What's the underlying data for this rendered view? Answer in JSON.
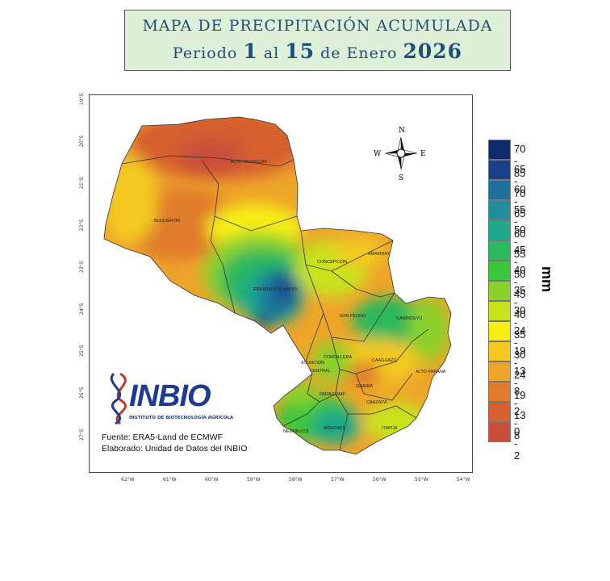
{
  "title": {
    "line1": "MAPA DE PRECIPITACIÓN ACUMULADA",
    "period_prefix": "Periodo",
    "period_start": "1",
    "period_mid": "al",
    "period_end": "15",
    "period_month": "de Enero",
    "period_year": "2026"
  },
  "legend": {
    "unit": "mm",
    "classes": [
      {
        "label": "70 - 85",
        "color": "#0d2a6e"
      },
      {
        "label": "65 - 70",
        "color": "#173f8a"
      },
      {
        "label": "60 - 65",
        "color": "#1f6e9c"
      },
      {
        "label": "55 - 60",
        "color": "#1f8f9b"
      },
      {
        "label": "50 - 55",
        "color": "#1fa88a"
      },
      {
        "label": "45 - 50",
        "color": "#2bb85c"
      },
      {
        "label": "40 - 45",
        "color": "#3cc63a"
      },
      {
        "label": "35 - 40",
        "color": "#8ad12c"
      },
      {
        "label": "30 - 35",
        "color": "#c8e31e"
      },
      {
        "label": "24 - 30",
        "color": "#f7ee12"
      },
      {
        "label": "19 - 24",
        "color": "#f4c820"
      },
      {
        "label": "13 - 19",
        "color": "#eea52a"
      },
      {
        "label": "8 - 13",
        "color": "#e07b2c"
      },
      {
        "label": "2 - 8",
        "color": "#d6612f"
      },
      {
        "label": "0 - 2",
        "color": "#c94f3b"
      }
    ]
  },
  "compass": {
    "n": "N",
    "s": "S",
    "e": "E",
    "w": "W"
  },
  "departments": [
    "ALTO PARAGUAY",
    "BOQUERÓN",
    "PRESIDENTE HAYES",
    "CONCEPCIÓN",
    "AMAMBAY",
    "SAN PEDRO",
    "CANINDEYÚ",
    "CORDILLERA",
    "ASUNCIÓN",
    "CENTRAL",
    "CAAGUAZÚ",
    "ALTO PARANÁ",
    "GUAIRÁ",
    "PARAGUARÍ",
    "CAAZAPÁ",
    "NEEMBUCÚ",
    "MISIONES",
    "ITAPÚA"
  ],
  "lat_ticks": [
    "19°S",
    "20°S",
    "21°S",
    "22°S",
    "23°S",
    "24°S",
    "25°S",
    "26°S",
    "27°S"
  ],
  "lon_ticks": [
    "62°W",
    "61°W",
    "60°W",
    "59°W",
    "58°W",
    "57°W",
    "56°W",
    "55°W",
    "54°W"
  ],
  "logo": {
    "name": "INBIO",
    "subtitle": "INSTITUTO DE BIOTECNOLOGÍA AGRÍCOLA"
  },
  "source": {
    "line1": "Fuente: ERA5-Land de ECMWF",
    "line2": "Elaborado: Unidad de Datos del INBIO"
  }
}
